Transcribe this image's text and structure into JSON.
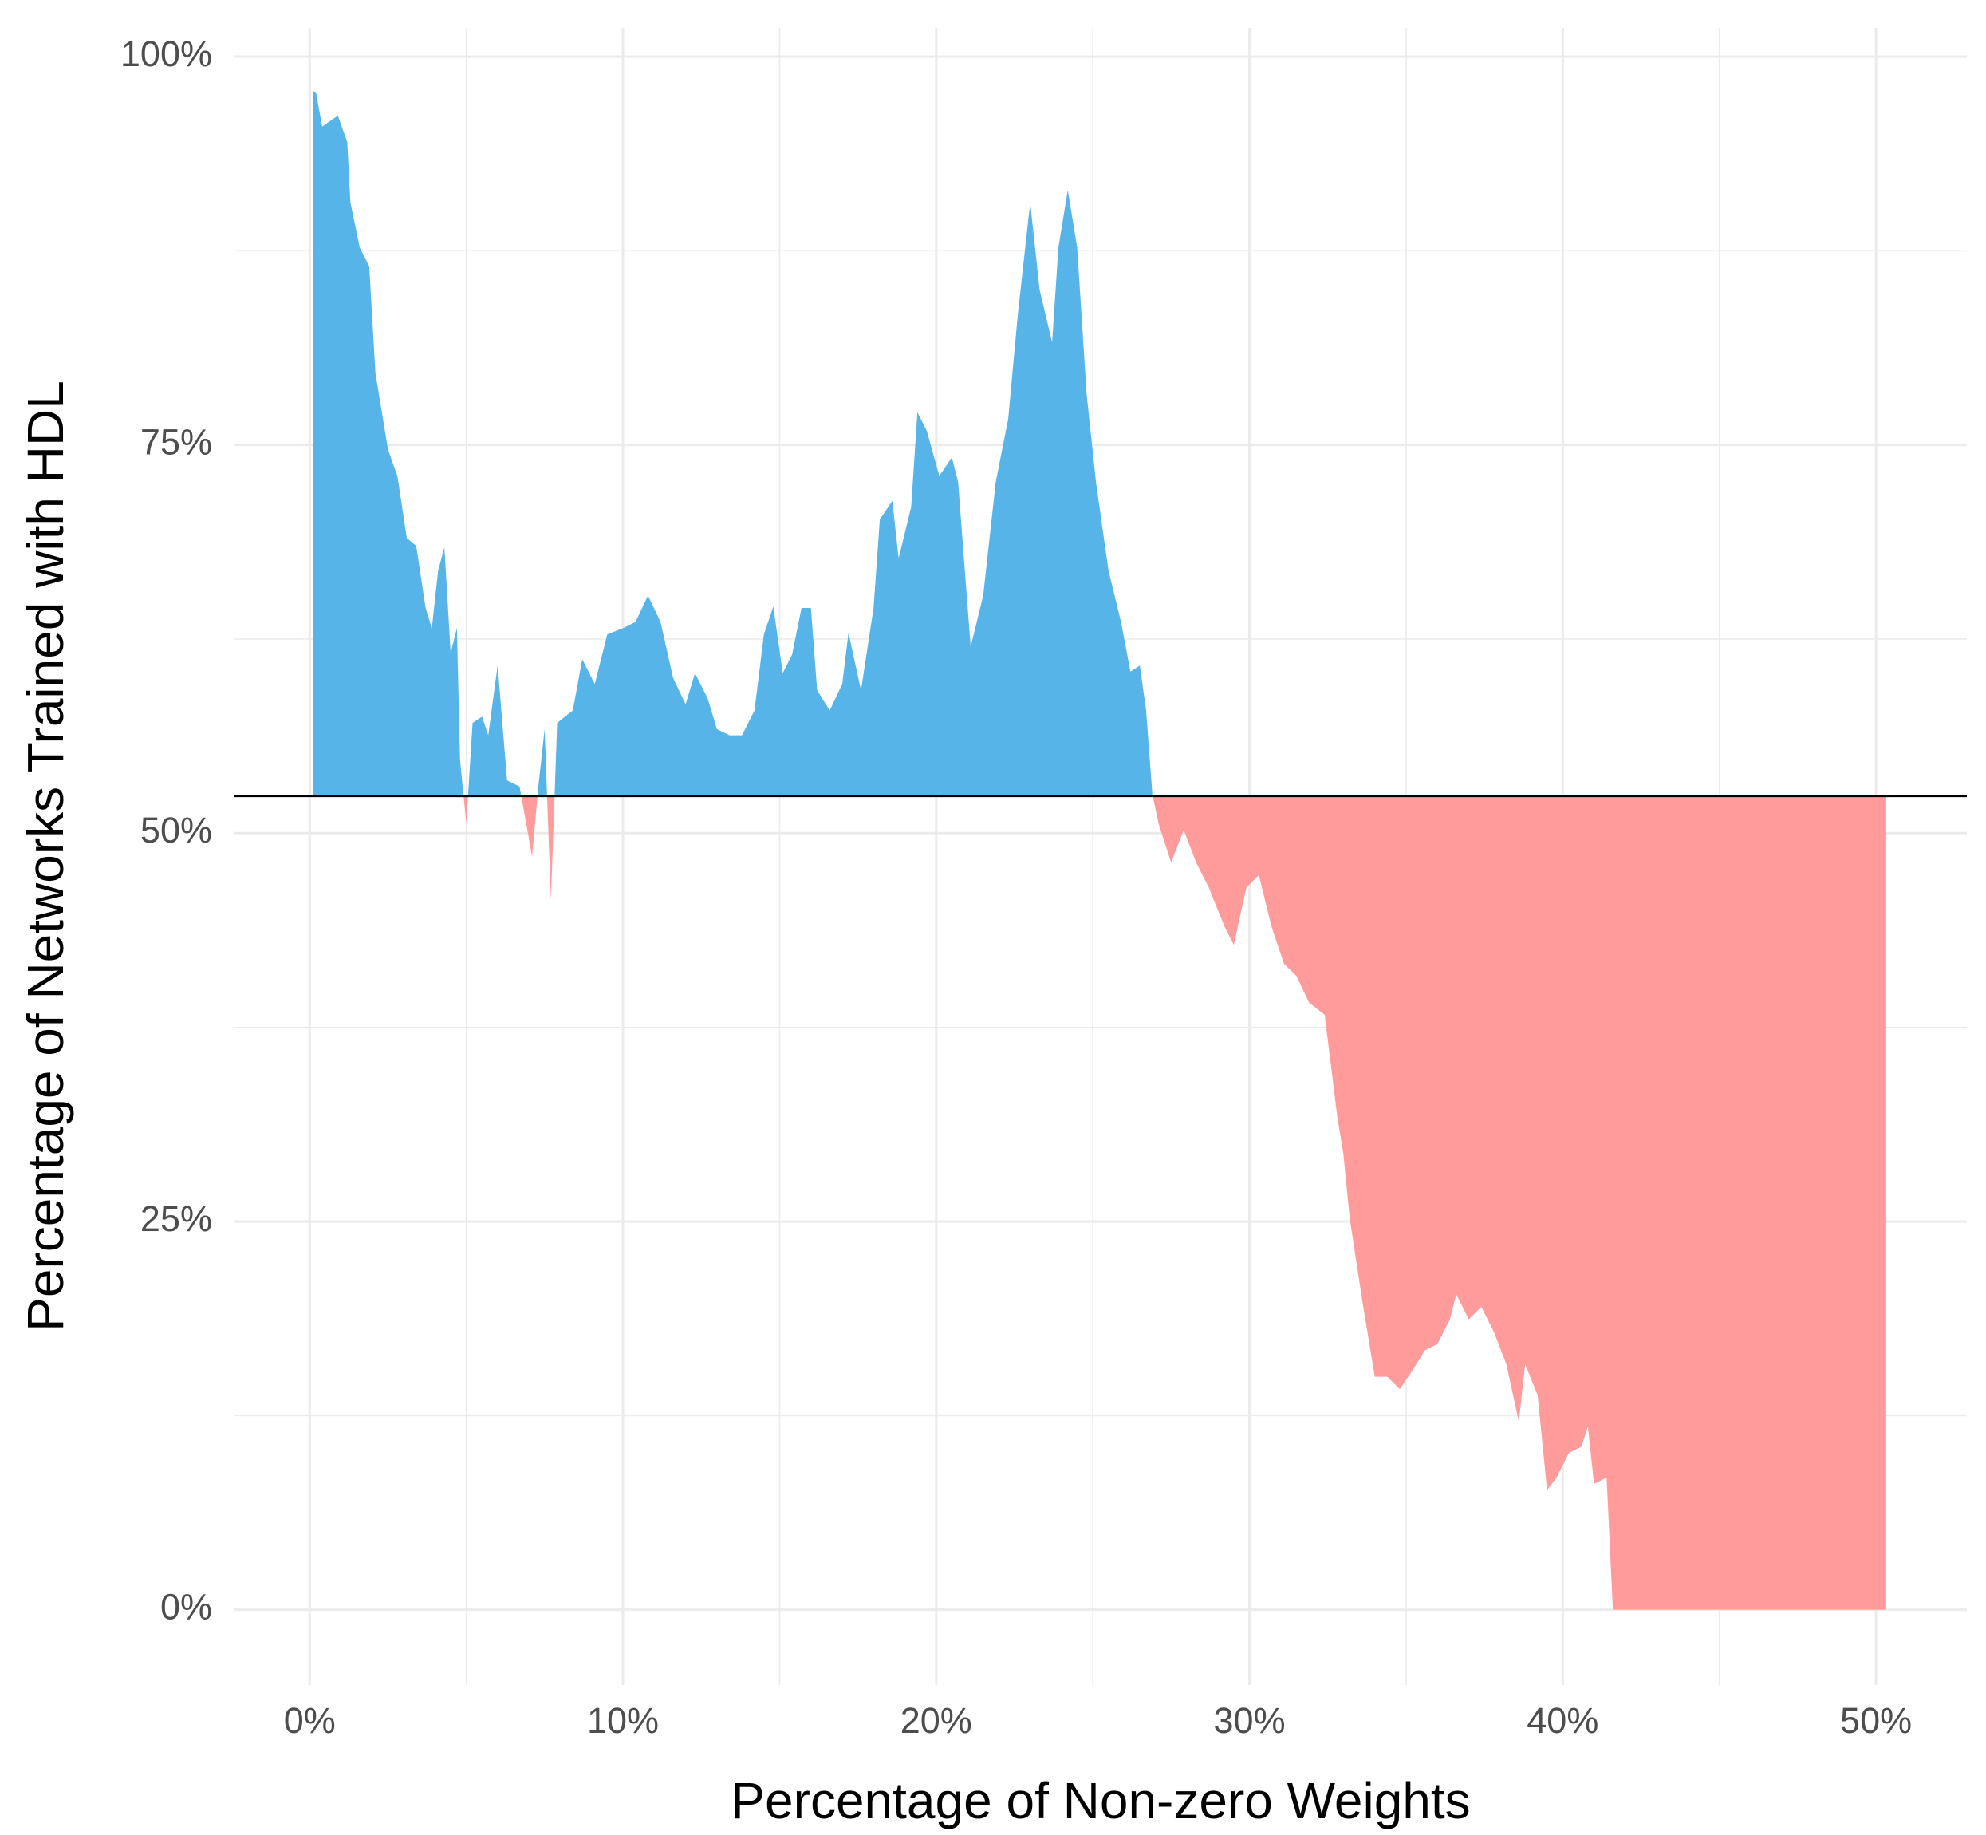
{
  "chart_data": {
    "type": "area",
    "x_label": "Percentage of Non-zero Weights",
    "y_label": "Percentage of Networks Trained with HDL",
    "xlim": [
      -2.4,
      52.9
    ],
    "ylim": [
      -4.85,
      101.85
    ],
    "xticks": [
      {
        "value": 0,
        "label": "0%"
      },
      {
        "value": 10,
        "label": "10%"
      },
      {
        "value": 20,
        "label": "20%"
      },
      {
        "value": 30,
        "label": "30%"
      },
      {
        "value": 40,
        "label": "40%"
      },
      {
        "value": 50,
        "label": "50%"
      }
    ],
    "xminorticks": [
      5,
      15,
      25,
      35,
      45
    ],
    "yticks": [
      {
        "value": 0,
        "label": "0%"
      },
      {
        "value": 25,
        "label": "25%"
      },
      {
        "value": 50,
        "label": "50%"
      },
      {
        "value": 75,
        "label": "75%"
      },
      {
        "value": 100,
        "label": "100%"
      }
    ],
    "yminorticks": [
      12.5,
      37.5,
      62.5,
      87.5
    ],
    "grid": true,
    "hline": 52.4,
    "color_above": "#56b4e9",
    "color_below": "#ff9b9b",
    "x": [
      0.1,
      0.2,
      0.4,
      0.9,
      1.2,
      1.3,
      1.6,
      1.9,
      2.1,
      2.5,
      2.8,
      3.1,
      3.4,
      3.7,
      3.9,
      4.1,
      4.3,
      4.5,
      4.7,
      4.8,
      5.0,
      5.2,
      5.5,
      5.7,
      6.0,
      6.3,
      6.7,
      7.1,
      7.3,
      7.5,
      7.7,
      7.9,
      8.4,
      8.7,
      9.1,
      9.5,
      10.0,
      10.4,
      10.8,
      11.2,
      11.6,
      12.0,
      12.3,
      12.7,
      13.0,
      13.4,
      13.8,
      14.2,
      14.5,
      14.8,
      15.1,
      15.4,
      15.7,
      16.0,
      16.2,
      16.6,
      17.0,
      17.2,
      17.6,
      18.0,
      18.2,
      18.6,
      18.8,
      19.2,
      19.4,
      19.7,
      20.1,
      20.5,
      20.7,
      21.1,
      21.5,
      21.9,
      22.3,
      22.6,
      23.0,
      23.3,
      23.7,
      23.9,
      24.2,
      24.5,
      24.8,
      25.1,
      25.5,
      25.9,
      26.2,
      26.5,
      26.7,
      26.9,
      27.1,
      27.5,
      27.9,
      28.3,
      28.7,
      29.2,
      29.5,
      29.9,
      30.3,
      30.7,
      31.1,
      31.5,
      31.9,
      32.4,
      32.8,
      33.0,
      33.2,
      33.6,
      34.0,
      34.4,
      34.8,
      35.2,
      35.6,
      36.0,
      36.4,
      36.6,
      37.0,
      37.4,
      37.8,
      38.2,
      38.6,
      38.8,
      39.2,
      39.5,
      39.8,
      40.2,
      40.6,
      40.8,
      41.0,
      41.4,
      41.6,
      42.6,
      46.7,
      50.3
    ],
    "values": [
      97.8,
      97.7,
      95.5,
      96.2,
      94.5,
      90.6,
      87.7,
      86.5,
      79.6,
      74.7,
      73.0,
      69.0,
      68.5,
      64.5,
      63.2,
      66.9,
      68.4,
      61.6,
      63.2,
      54.7,
      50.6,
      57.1,
      57.5,
      56.3,
      60.8,
      53.4,
      53.0,
      48.5,
      53.0,
      56.7,
      45.7,
      57.1,
      57.9,
      61.2,
      59.6,
      62.8,
      63.2,
      63.6,
      65.3,
      63.6,
      60.0,
      58.3,
      60.3,
      58.7,
      56.7,
      56.3,
      56.3,
      57.9,
      62.8,
      64.6,
      60.3,
      61.5,
      64.5,
      64.5,
      59.2,
      57.9,
      59.6,
      62.9,
      59.2,
      64.5,
      70.2,
      71.4,
      67.7,
      71.0,
      77.1,
      75.9,
      73.0,
      74.2,
      72.6,
      62.0,
      65.3,
      72.6,
      76.7,
      83.3,
      90.6,
      85.0,
      81.6,
      87.7,
      91.4,
      87.7,
      78.3,
      72.6,
      66.9,
      63.6,
      60.4,
      60.8,
      57.9,
      52.5,
      50.6,
      48.1,
      50.2,
      48.1,
      46.5,
      44.0,
      42.8,
      46.5,
      47.3,
      44.0,
      41.6,
      40.8,
      39.1,
      38.3,
      31.8,
      29.3,
      25.2,
      19.9,
      15.0,
      15.0,
      14.2,
      15.4,
      16.7,
      17.1,
      18.7,
      20.3,
      18.7,
      19.5,
      17.9,
      15.8,
      12.1,
      15.8,
      13.8,
      7.7,
      8.5,
      10.1,
      10.5,
      11.8,
      8.1,
      8.5,
      0,
      0,
      0,
      0
    ]
  }
}
